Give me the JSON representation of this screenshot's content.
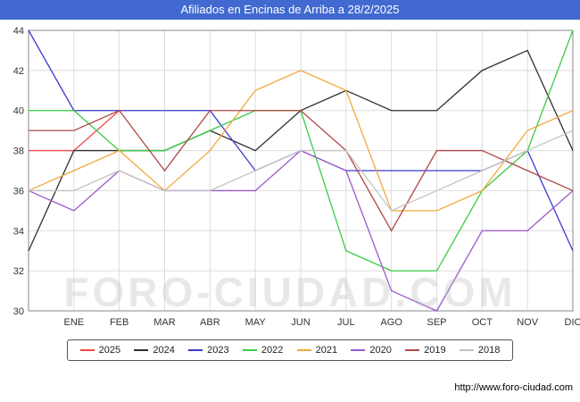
{
  "header": {
    "title": "Afiliados en Encinas de Arriba a 28/2/2025",
    "bg_color": "#4169d0"
  },
  "watermark": {
    "text": "FORO-CIUDAD.COM"
  },
  "footer": {
    "url": "http://www.foro-ciudad.com"
  },
  "chart_data": {
    "type": "line",
    "title": "Afiliados en Encinas de Arriba a 28/2/2025",
    "xlabel": "",
    "ylabel": "",
    "ylim": [
      30,
      44
    ],
    "ytick_step": 2,
    "grid": true,
    "legend_position": "bottom",
    "categories": [
      "",
      "ENE",
      "FEB",
      "MAR",
      "ABR",
      "MAY",
      "JUN",
      "JUL",
      "AGO",
      "SEP",
      "OCT",
      "NOV",
      "DIC"
    ],
    "series": [
      {
        "name": "2025",
        "color": "#f04848",
        "values": [
          38,
          38,
          40,
          null,
          null,
          null,
          null,
          null,
          null,
          null,
          null,
          null,
          null
        ]
      },
      {
        "name": "2024",
        "color": "#303030",
        "values": [
          33,
          38,
          38,
          38,
          39,
          38,
          40,
          41,
          40,
          40,
          42,
          43,
          38
        ]
      },
      {
        "name": "2023",
        "color": "#3a3ad0",
        "values": [
          44,
          40,
          40,
          40,
          40,
          37,
          38,
          37,
          37,
          37,
          37,
          38,
          33
        ]
      },
      {
        "name": "2022",
        "color": "#38cc44",
        "values": [
          40,
          40,
          38,
          38,
          39,
          40,
          40,
          33,
          32,
          32,
          36,
          38,
          44
        ]
      },
      {
        "name": "2021",
        "color": "#f0a93c",
        "values": [
          36,
          37,
          38,
          36,
          38,
          41,
          42,
          41,
          35,
          35,
          36,
          39,
          40
        ]
      },
      {
        "name": "2020",
        "color": "#9b59c8",
        "values": [
          36,
          35,
          37,
          36,
          36,
          36,
          38,
          37,
          31,
          30,
          34,
          34,
          36
        ]
      },
      {
        "name": "2019",
        "color": "#b04848",
        "values": [
          39,
          39,
          40,
          37,
          40,
          40,
          40,
          38,
          34,
          38,
          38,
          37,
          36
        ]
      },
      {
        "name": "2018",
        "color": "#c4c4c4",
        "values": [
          36,
          36,
          37,
          36,
          36,
          37,
          38,
          38,
          35,
          36,
          37,
          38,
          39
        ]
      }
    ]
  }
}
